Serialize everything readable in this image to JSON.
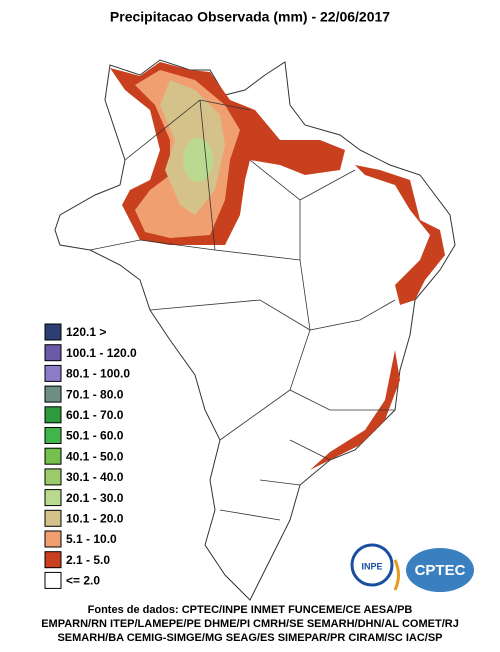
{
  "title": "Precipitacao Observada (mm) - 22/06/2017",
  "legend": [
    {
      "label": "120.1 >",
      "color": "#2c3e73"
    },
    {
      "label": "100.1 - 120.0",
      "color": "#6a5aa8"
    },
    {
      "label": "80.1 - 100.0",
      "color": "#8b7bc9"
    },
    {
      "label": "70.1 - 80.0",
      "color": "#6f8f86"
    },
    {
      "label": "60.1 - 70.0",
      "color": "#2e9a3e"
    },
    {
      "label": "50.1 - 60.0",
      "color": "#3fb54a"
    },
    {
      "label": "40.1 - 50.0",
      "color": "#74c04c"
    },
    {
      "label": "30.1 - 40.0",
      "color": "#9ccc6a"
    },
    {
      "label": "20.1 - 30.0",
      "color": "#b9d98e"
    },
    {
      "label": "10.1 - 20.0",
      "color": "#d4c28a"
    },
    {
      "label": "5.1 - 10.0",
      "color": "#f0a070"
    },
    {
      "label": "2.1 - 5.0",
      "color": "#c8401e"
    },
    {
      "label": "<= 2.0",
      "color": "#ffffff"
    }
  ],
  "sources": [
    "Fontes de dados: CPTEC/INPE INMET FUNCEME/CE AESA/PB",
    "EMPARN/RN ITEP/LAMEPE/PE DHME/PI CMRH/SE SEMARH/DHN/AL COMET/RJ",
    "SEMARH/BA CEMIG-SIMGE/MG SEAG/ES SIMEPAR/PR CIRAM/SC IAC/SP"
  ],
  "logos": {
    "inpe": "INPE",
    "cptec": "CPTEC"
  }
}
